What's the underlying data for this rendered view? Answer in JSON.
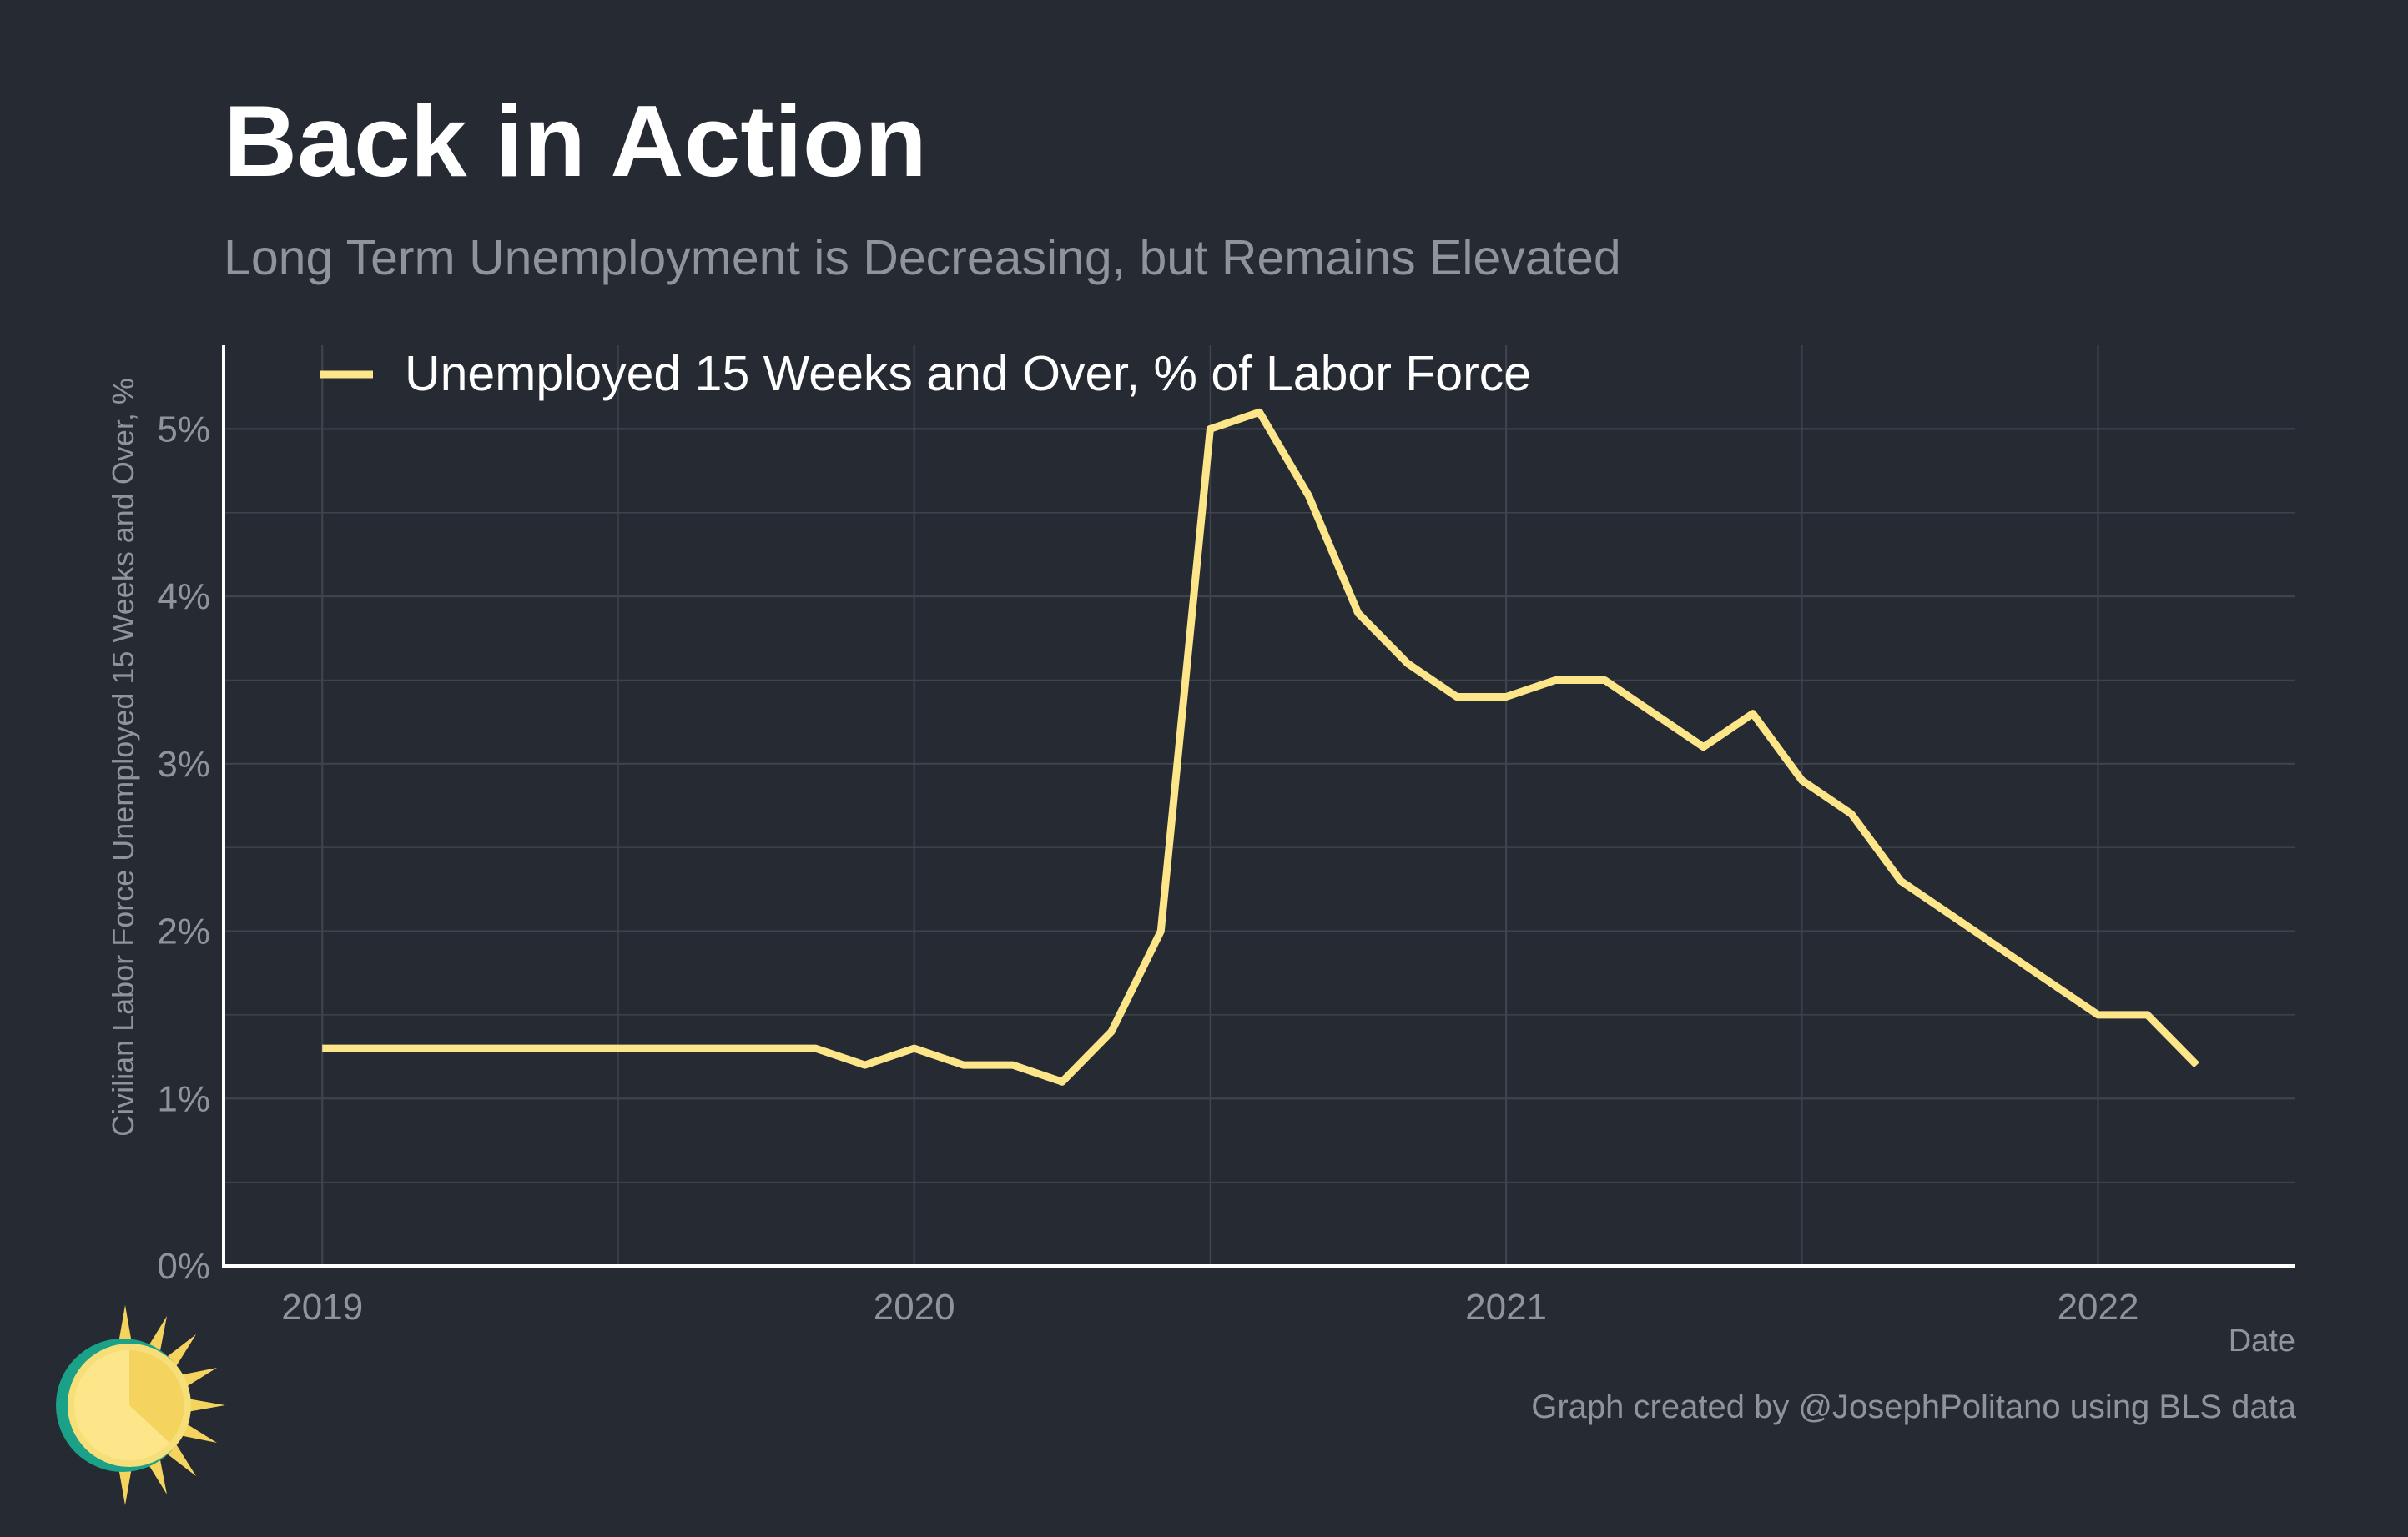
{
  "title": "Back in Action",
  "subtitle": "Long Term Unemployment is Decreasing, but Remains Elevated",
  "credit": "Graph created by @JosephPolitano using BLS data",
  "colors": {
    "background": "#252a33",
    "line": "#fde68a",
    "grid": "#3e434c",
    "axis": "#ffffff",
    "muted_text": "#8f949b"
  },
  "chart_data": {
    "type": "line",
    "xlabel": "Date",
    "ylabel": "Civilian Labor Force Unemployed 15 Weeks and Over, %",
    "ylim": [
      0,
      5.5
    ],
    "y_ticks": [
      0,
      1,
      2,
      3,
      4,
      5
    ],
    "y_tick_labels": [
      "0%",
      "1%",
      "2%",
      "3%",
      "4%",
      "5%"
    ],
    "x_ticks": [
      "2019-01",
      "2020-01",
      "2021-01",
      "2022-01"
    ],
    "x_tick_labels": [
      "2019",
      "2020",
      "2021",
      "2022"
    ],
    "x_range": [
      "2018-11",
      "2022-05"
    ],
    "grid": true,
    "legend_position": "top-left",
    "series": [
      {
        "name": "Unemployed 15 Weeks and Over, % of Labor Force",
        "color": "#fde68a",
        "x": [
          "2019-01",
          "2019-02",
          "2019-03",
          "2019-04",
          "2019-05",
          "2019-06",
          "2019-07",
          "2019-08",
          "2019-09",
          "2019-10",
          "2019-11",
          "2019-12",
          "2020-01",
          "2020-02",
          "2020-03",
          "2020-04",
          "2020-05",
          "2020-06",
          "2020-07",
          "2020-08",
          "2020-09",
          "2020-10",
          "2020-11",
          "2020-12",
          "2021-01",
          "2021-02",
          "2021-03",
          "2021-04",
          "2021-05",
          "2021-06",
          "2021-07",
          "2021-08",
          "2021-09",
          "2021-10",
          "2021-11",
          "2021-12",
          "2022-01",
          "2022-02",
          "2022-03"
        ],
        "values": [
          1.3,
          1.3,
          1.3,
          1.3,
          1.3,
          1.3,
          1.3,
          1.3,
          1.3,
          1.3,
          1.3,
          1.2,
          1.3,
          1.2,
          1.2,
          1.1,
          1.4,
          2.0,
          5.0,
          5.1,
          4.6,
          3.9,
          3.6,
          3.4,
          3.4,
          3.5,
          3.5,
          3.3,
          3.1,
          3.3,
          2.9,
          2.7,
          2.3,
          2.1,
          1.9,
          1.7,
          1.5,
          1.5,
          1.2
        ]
      }
    ]
  }
}
